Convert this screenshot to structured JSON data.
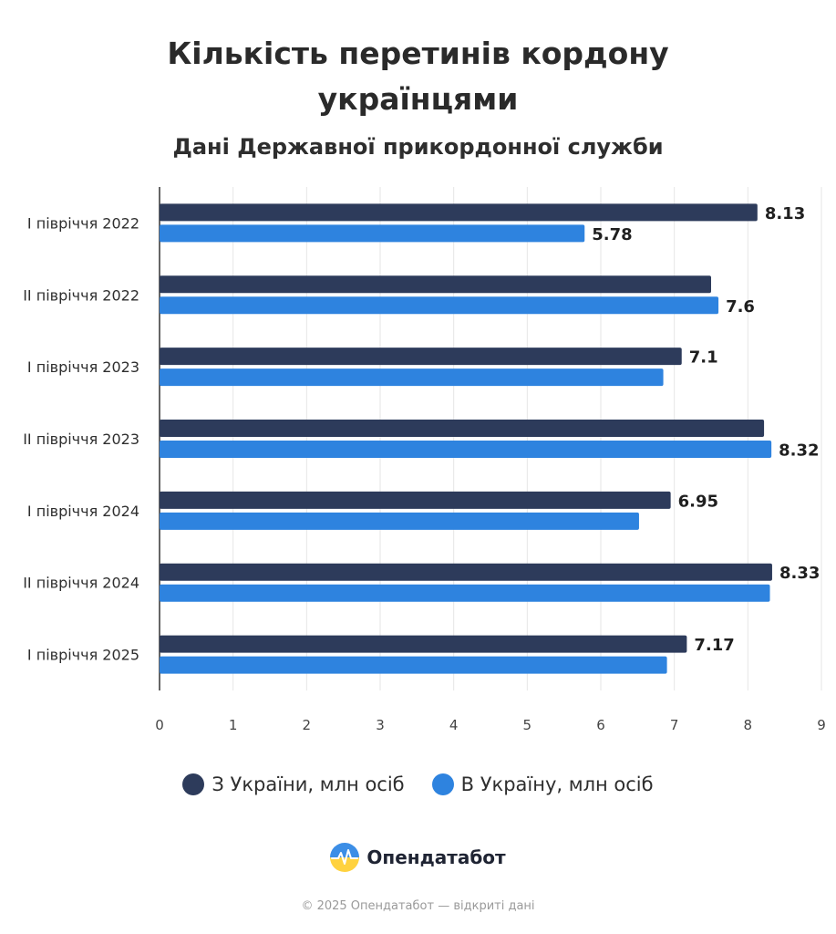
{
  "title_lines": [
    "Кількість перетинів кордону",
    "українцями"
  ],
  "subtitle": "Дані Державної прикордонної служби",
  "colors": {
    "out": "#2d3b5b",
    "in": "#2e83df",
    "grid": "#e6e6e6",
    "axis": "#333333"
  },
  "chart_data": {
    "type": "bar",
    "orientation": "horizontal",
    "categories": [
      "І півріччя 2022",
      "ІІ півріччя 2022",
      "І півріччя 2023",
      "ІІ півріччя 2023",
      "І півріччя 2024",
      "ІІ півріччя 2024",
      "І півріччя 2025"
    ],
    "series": [
      {
        "name": "З України, млн осіб",
        "color": "#2d3b5b",
        "values": [
          8.13,
          7.5,
          7.1,
          8.22,
          6.95,
          8.33,
          7.17
        ],
        "data_labels": [
          "8.13",
          "",
          "7.1",
          "",
          "6.95",
          "8.33",
          "7.17"
        ]
      },
      {
        "name": "В Україну, млн осіб",
        "color": "#2e83df",
        "values": [
          5.78,
          7.6,
          6.85,
          8.32,
          6.52,
          8.3,
          6.9
        ],
        "data_labels": [
          "5.78",
          "7.6",
          "",
          "8.32",
          "",
          "",
          ""
        ]
      }
    ],
    "x_ticks": [
      "0",
      "1",
      "2",
      "3",
      "4",
      "5",
      "6",
      "7",
      "8",
      "9"
    ],
    "xlim": [
      0,
      9
    ],
    "grid": true,
    "legend_position": "bottom"
  },
  "legend": [
    {
      "label": "З України, млн осіб",
      "color": "#2d3b5b"
    },
    {
      "label": "В Україну, млн осіб",
      "color": "#2e83df"
    }
  ],
  "brand": {
    "name": "Опендатабот",
    "icon": "opendatabot-logo-icon"
  },
  "footer": "© 2025 Опендатабот — відкриті дані"
}
